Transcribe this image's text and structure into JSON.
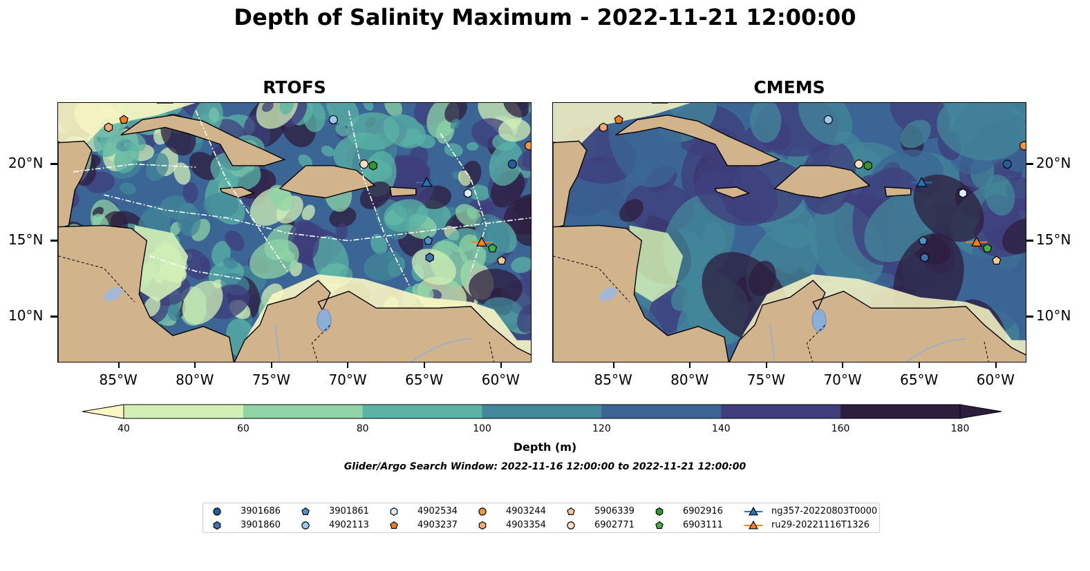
{
  "title": "Depth of Salinity Maximum - 2022-11-21 12:00:00",
  "panels": [
    {
      "title": "RTOFS"
    },
    {
      "title": "CMEMS"
    }
  ],
  "axes": {
    "lon_labels": [
      "85°W",
      "80°W",
      "75°W",
      "70°W",
      "65°W",
      "60°W"
    ],
    "lat_labels": [
      "20°N",
      "15°N",
      "10°N"
    ]
  },
  "colorbar": {
    "label": "Depth (m)",
    "ticks": [
      "40",
      "60",
      "80",
      "100",
      "120",
      "140",
      "160",
      "180"
    ],
    "colors": [
      "#fbf7c4",
      "#d2efb6",
      "#8ed4a5",
      "#5ab3a5",
      "#43879a",
      "#3b6594",
      "#3f3d7c",
      "#2d1e3e"
    ]
  },
  "search_window": "Glider/Argo Search Window: 2022-11-16 12:00:00 to 2022-11-21 12:00:00",
  "land_color": "#d2b48c",
  "water_color": "#8aafd9",
  "legend": [
    {
      "label": "3901686",
      "marker": "circle",
      "color": "#1f5f9c"
    },
    {
      "label": "3901860",
      "marker": "hexagon",
      "color": "#3a75ae"
    },
    {
      "label": "3901861",
      "marker": "pentagon",
      "color": "#4f92c8"
    },
    {
      "label": "4902113",
      "marker": "circle",
      "color": "#9cc8ec"
    },
    {
      "label": "4902534",
      "marker": "hexagon",
      "color": "#d9eefb"
    },
    {
      "label": "4903237",
      "marker": "pentagon",
      "color": "#f07f18"
    },
    {
      "label": "4903244",
      "marker": "circle",
      "color": "#f59335"
    },
    {
      "label": "4903354",
      "marker": "hexagon",
      "color": "#f7aa6c"
    },
    {
      "label": "5906339",
      "marker": "pentagon",
      "color": "#f9c68f"
    },
    {
      "label": "6902771",
      "marker": "circle",
      "color": "#fbddc4"
    },
    {
      "label": "6902916",
      "marker": "hexagon",
      "color": "#2c9a2c"
    },
    {
      "label": "6903111",
      "marker": "pentagon",
      "color": "#3fb33f"
    },
    {
      "label": "ng357-20220803T0000",
      "marker": "triangle-line",
      "color": "#1f77b4"
    },
    {
      "label": "ru29-20221116T1326",
      "marker": "triangle-line",
      "color": "#ff7f0e"
    }
  ],
  "stations": [
    {
      "id": "3901686",
      "lon": -59.3,
      "lat": 20.0
    },
    {
      "id": "3901860",
      "lon": -64.7,
      "lat": 13.9
    },
    {
      "id": "3901861",
      "lon": -64.8,
      "lat": 15.0
    },
    {
      "id": "4902113",
      "lon": -71.0,
      "lat": 22.9
    },
    {
      "id": "4902534",
      "lon": -62.2,
      "lat": 18.1
    },
    {
      "id": "4903237",
      "lon": -84.7,
      "lat": 22.9
    },
    {
      "id": "4903244",
      "lon": -58.2,
      "lat": 21.2
    },
    {
      "id": "4903354",
      "lon": -85.7,
      "lat": 22.4
    },
    {
      "id": "5906339",
      "lon": -60.0,
      "lat": 13.7
    },
    {
      "id": "6902771",
      "lon": -69.0,
      "lat": 20.0
    },
    {
      "id": "6902916",
      "lon": -68.4,
      "lat": 19.9
    },
    {
      "id": "6903111",
      "lon": -60.6,
      "lat": 14.5
    },
    {
      "id": "ng357-20220803T0000",
      "lon": -64.9,
      "lat": 18.8
    },
    {
      "id": "ru29-20221116T1326",
      "lon": -61.3,
      "lat": 14.9
    }
  ]
}
